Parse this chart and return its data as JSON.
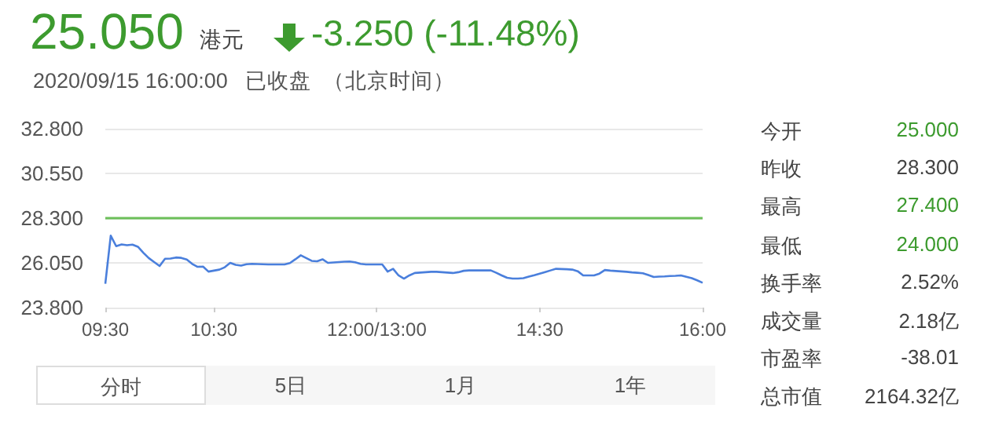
{
  "chart_data": {
    "type": "line",
    "title": "25.050",
    "subtitle": "2020/09/15 16:00:00   已收盘  （北京时间）",
    "annotations": [
      "港元",
      "-3.250 (-11.48%)",
      "分时",
      "5日",
      "1月",
      "1年",
      "今开",
      "25.000",
      "昨收",
      "28.300",
      "最高",
      "27.400",
      "最低",
      "24.000",
      "换手率",
      "2.52%",
      "成交量",
      "2.18亿",
      "市盈率",
      "-38.01",
      "总市值",
      "2164.32亿"
    ],
    "categories": [
      "09:30",
      null,
      null,
      null,
      null,
      null,
      null,
      null,
      null,
      null,
      null,
      null,
      null,
      null,
      null,
      null,
      null,
      null,
      null,
      null,
      "10:30",
      null,
      null,
      null,
      null,
      null,
      null,
      null,
      null,
      null,
      null,
      null,
      null,
      null,
      null,
      null,
      null,
      null,
      null,
      null,
      null,
      null,
      null,
      null,
      null,
      null,
      null,
      null,
      null,
      null,
      "12:00/13:00",
      null,
      null,
      null,
      null,
      null,
      null,
      null,
      null,
      null,
      null,
      null,
      null,
      null,
      null,
      null,
      null,
      null,
      null,
      null,
      null,
      null,
      null,
      null,
      null,
      null,
      null,
      null,
      null,
      null,
      "14:30",
      null,
      null,
      null,
      null,
      null,
      null,
      null,
      null,
      null,
      null,
      null,
      null,
      null,
      null,
      null,
      null,
      null,
      null,
      null,
      null,
      null,
      null,
      null,
      null,
      null,
      null,
      null,
      null,
      null,
      "16:00"
    ],
    "series": [
      {
        "color": "#4a7fdc",
        "values": [
          25.0,
          27.42,
          26.89,
          26.98,
          26.94,
          26.97,
          26.86,
          26.56,
          26.29,
          26.09,
          25.89,
          26.26,
          26.27,
          26.32,
          26.3,
          26.22,
          26.0,
          25.85,
          25.86,
          25.61,
          25.66,
          25.71,
          25.83,
          26.05,
          25.95,
          25.91,
          25.98,
          26.0,
          25.99,
          25.98,
          25.97,
          25.97,
          25.97,
          25.97,
          26.04,
          26.23,
          26.43,
          26.29,
          26.15,
          26.13,
          26.23,
          26.05,
          26.07,
          26.09,
          26.11,
          26.12,
          26.08,
          26.0,
          25.97,
          25.97,
          25.97,
          25.97,
          25.61,
          25.75,
          25.42,
          25.26,
          25.42,
          25.54,
          25.56,
          25.58,
          25.6,
          25.6,
          25.58,
          25.56,
          25.54,
          25.58,
          25.65,
          25.67,
          25.67,
          25.67,
          25.67,
          25.67,
          25.55,
          25.42,
          25.3,
          25.26,
          25.26,
          25.28,
          25.36,
          25.43,
          25.51,
          25.59,
          25.67,
          25.75,
          25.74,
          25.73,
          25.71,
          25.63,
          25.42,
          25.42,
          25.42,
          25.51,
          25.69,
          25.66,
          25.64,
          25.62,
          25.6,
          25.57,
          25.55,
          25.53,
          25.44,
          25.34,
          25.36,
          25.37,
          25.39,
          25.4,
          25.42,
          25.35,
          25.28,
          25.17,
          25.05
        ]
      }
    ],
    "ylim": [
      23.8,
      32.8
    ],
    "yticks": [
      {
        "value": 23.8,
        "label": "23.800"
      },
      {
        "value": 26.05,
        "label": "26.050"
      },
      {
        "value": 28.3,
        "label": "28.300"
      },
      {
        "value": 30.55,
        "label": "30.550"
      },
      {
        "value": 32.8,
        "label": "32.800"
      }
    ],
    "ref_lines": [
      {
        "axis": "y",
        "value": 28.3,
        "label": null,
        "color": "#6cbf5a"
      }
    ],
    "grid": "y",
    "marker": "none",
    "line_style": "solid"
  }
}
